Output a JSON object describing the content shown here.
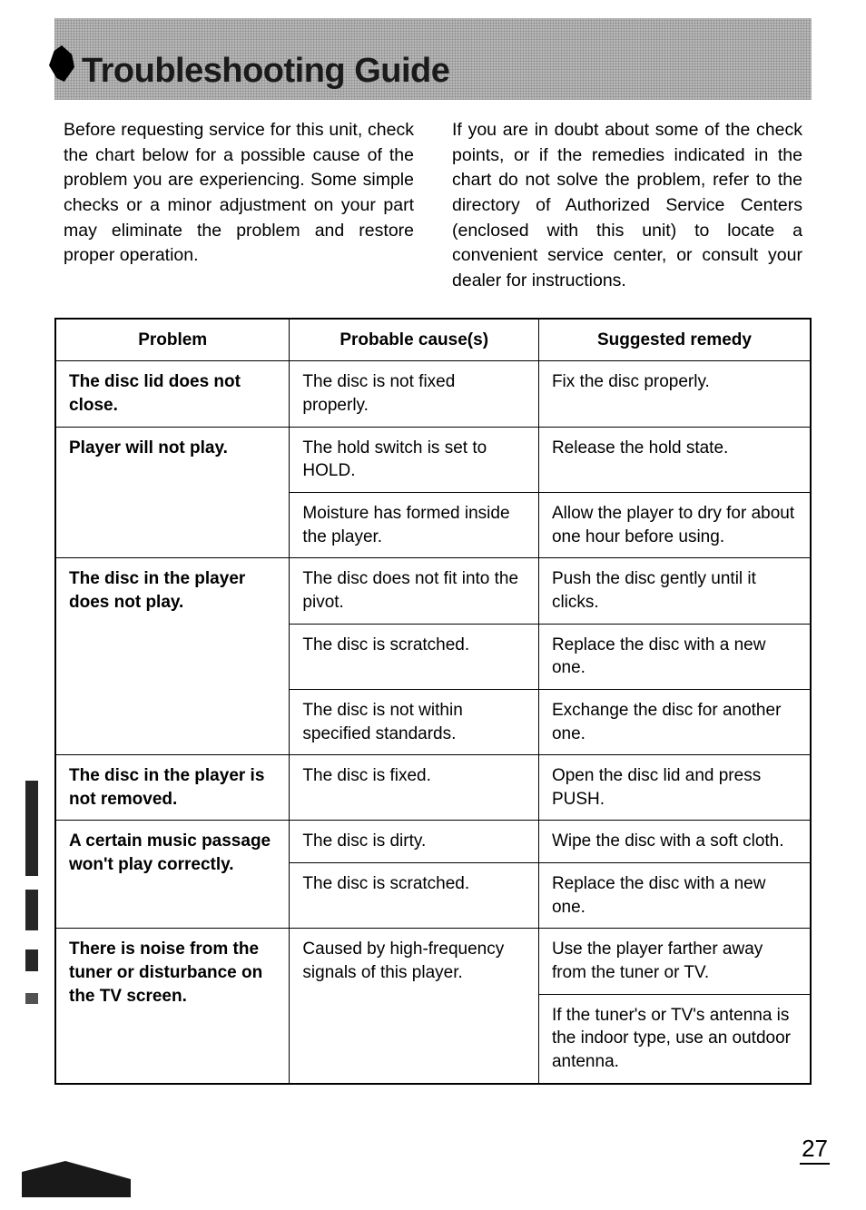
{
  "title": "Troubleshooting Guide",
  "intro": {
    "left": "Before requesting service for this unit, check the chart below for a possible cause of the problem you are experiencing. Some simple checks or a minor adjustment on your part may eliminate the problem and restore proper operation.",
    "right": "If you are in doubt about some of the check points, or if the remedies indicated in the chart do not solve the problem, refer to the directory of Authorized Service Centers (enclosed with this unit) to locate a convenient service center, or consult your dealer for instructions."
  },
  "table": {
    "headers": {
      "problem": "Problem",
      "cause": "Probable cause(s)",
      "remedy": "Suggested remedy"
    },
    "column_widths_pct": [
      31,
      33,
      36
    ],
    "rows": [
      {
        "problem": "The disc lid does not close.",
        "problem_rowspan": 1,
        "cause": "The disc is not fixed properly.",
        "cause_rowspan": 1,
        "remedy": "Fix the disc properly."
      },
      {
        "problem": "Player will not play.",
        "problem_rowspan": 2,
        "cause": "The hold switch is set to HOLD.",
        "cause_rowspan": 1,
        "remedy": "Release the hold state."
      },
      {
        "cause": "Moisture has formed inside the player.",
        "cause_rowspan": 1,
        "remedy": "Allow the player to dry for about one hour before using."
      },
      {
        "problem": "The disc in the player does not play.",
        "problem_rowspan": 3,
        "cause": "The disc does not fit into the pivot.",
        "cause_rowspan": 1,
        "remedy": "Push the disc gently until it clicks."
      },
      {
        "cause": "The disc is scratched.",
        "cause_rowspan": 1,
        "remedy": "Replace the disc with a new one."
      },
      {
        "cause": "The disc is not within specified standards.",
        "cause_rowspan": 1,
        "remedy": "Exchange the disc for another one."
      },
      {
        "problem": "The disc in the player is not removed.",
        "problem_rowspan": 1,
        "cause": "The disc is fixed.",
        "cause_rowspan": 1,
        "remedy": "Open the disc lid and press PUSH."
      },
      {
        "problem": "A certain music passage won't play correctly.",
        "problem_rowspan": 2,
        "cause": "The disc is dirty.",
        "cause_rowspan": 1,
        "remedy": "Wipe the disc with a soft cloth."
      },
      {
        "cause": "The disc is scratched.",
        "cause_rowspan": 1,
        "remedy": "Replace the disc with a new one."
      },
      {
        "problem": "There is noise from the tuner or disturbance on the TV screen.",
        "problem_rowspan": 2,
        "cause": "Caused by high-frequency signals of this player.",
        "cause_rowspan": 2,
        "remedy": "Use the player farther away from the tuner or TV."
      },
      {
        "remedy": "If the tuner's or TV's antenna is the indoor type, use an outdoor antenna."
      }
    ]
  },
  "page_number": "27",
  "style": {
    "page_bg": "#ffffff",
    "text_color": "#000000",
    "border_color": "#000000",
    "title_fontsize_pt": 29,
    "body_fontsize_pt": 15,
    "header_bg_pattern_colors": [
      "#bfbfbf",
      "#d8d8d8"
    ],
    "font_family": "Arial, Helvetica, sans-serif"
  }
}
